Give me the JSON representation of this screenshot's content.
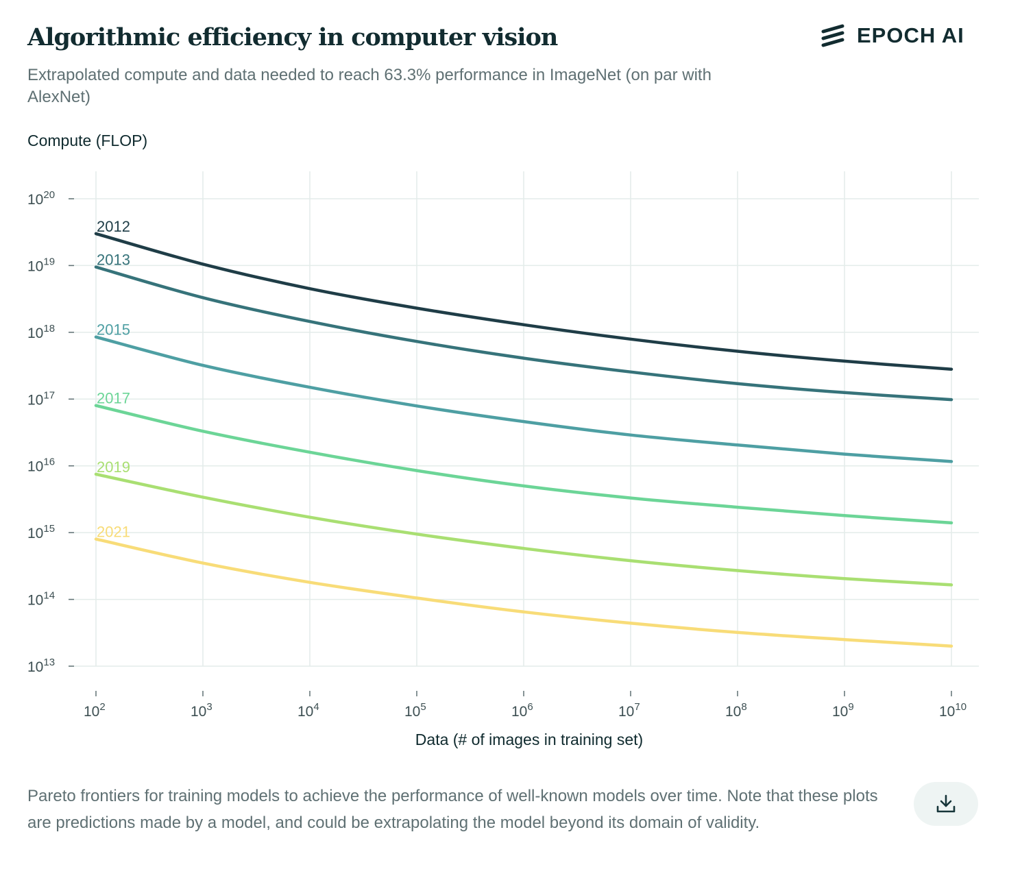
{
  "header": {
    "title": "Algorithmic efficiency in computer vision",
    "subtitle": "Extrapolated compute and data needed to reach 63.3% performance in ImageNet (on par with AlexNet)",
    "logo_text": "EPOCH AI"
  },
  "footer": {
    "caption": "Pareto frontiers for training models to achieve the performance of well-known models over time. Note that these plots are predictions made by a model, and could be extrapolating the model beyond its domain of validity.",
    "download_icon": "download-icon"
  },
  "chart_data": {
    "type": "line",
    "title": "Algorithmic efficiency in computer vision",
    "xlabel": "Data (# of images in training set)",
    "ylabel": "Compute (FLOP)",
    "x_scale": "log",
    "y_scale": "log",
    "xlim": [
      100,
      10000000000
    ],
    "ylim": [
      10000000000000.0,
      1e+20
    ],
    "x_ticks": [
      {
        "base": "10",
        "exp": "2"
      },
      {
        "base": "10",
        "exp": "3"
      },
      {
        "base": "10",
        "exp": "4"
      },
      {
        "base": "10",
        "exp": "5"
      },
      {
        "base": "10",
        "exp": "6"
      },
      {
        "base": "10",
        "exp": "7"
      },
      {
        "base": "10",
        "exp": "8"
      },
      {
        "base": "10",
        "exp": "9"
      },
      {
        "base": "10",
        "exp": "10"
      }
    ],
    "y_ticks": [
      {
        "base": "10",
        "exp": "13"
      },
      {
        "base": "10",
        "exp": "14"
      },
      {
        "base": "10",
        "exp": "15"
      },
      {
        "base": "10",
        "exp": "16"
      },
      {
        "base": "10",
        "exp": "17"
      },
      {
        "base": "10",
        "exp": "18"
      },
      {
        "base": "10",
        "exp": "19"
      },
      {
        "base": "10",
        "exp": "20"
      }
    ],
    "grid": true,
    "legend": "inline labels at left end of each line",
    "x": [
      100,
      1000,
      10000,
      100000,
      1000000,
      10000000,
      100000000,
      1000000000,
      10000000000
    ],
    "series": [
      {
        "name": "2012",
        "color": "#1f3d47",
        "values": [
          3e+19,
          1.05e+19,
          4.5e+18,
          2.3e+18,
          1.3e+18,
          7.9e+17,
          5.2e+17,
          3.7e+17,
          2.8e+17
        ]
      },
      {
        "name": "2013",
        "color": "#36737a",
        "values": [
          9.5e+18,
          3.3e+18,
          1.45e+18,
          7.3e+17,
          4.1e+17,
          2.55e+17,
          1.7e+17,
          1.25e+17,
          9.8e+16
        ]
      },
      {
        "name": "2015",
        "color": "#4e9fa3",
        "values": [
          8.5e+17,
          3.2e+17,
          1.5e+17,
          7.9e+16,
          4.6e+16,
          2.9e+16,
          2.05e+16,
          1.5e+16,
          1.16e+16
        ]
      },
      {
        "name": "2017",
        "color": "#6cd597",
        "values": [
          8e+16,
          3.3e+16,
          1.6e+16,
          8500000000000000.0,
          5000000000000000.0,
          3300000000000000.0,
          2400000000000000.0,
          1800000000000000.0,
          1400000000000000.0
        ]
      },
      {
        "name": "2019",
        "color": "#a9df72",
        "values": [
          7500000000000000.0,
          3400000000000000.0,
          1700000000000000.0,
          950000000000000.0,
          580000000000000.0,
          380000000000000.0,
          270000000000000.0,
          205000000000000.0,
          165000000000000.0
        ]
      },
      {
        "name": "2021",
        "color": "#f8dc78",
        "values": [
          800000000000000.0,
          350000000000000.0,
          180000000000000.0,
          105000000000000.0,
          65000000000000.0,
          44000000000000.0,
          32000000000000.0,
          25000000000000.0,
          20000000000000.0
        ]
      }
    ]
  }
}
